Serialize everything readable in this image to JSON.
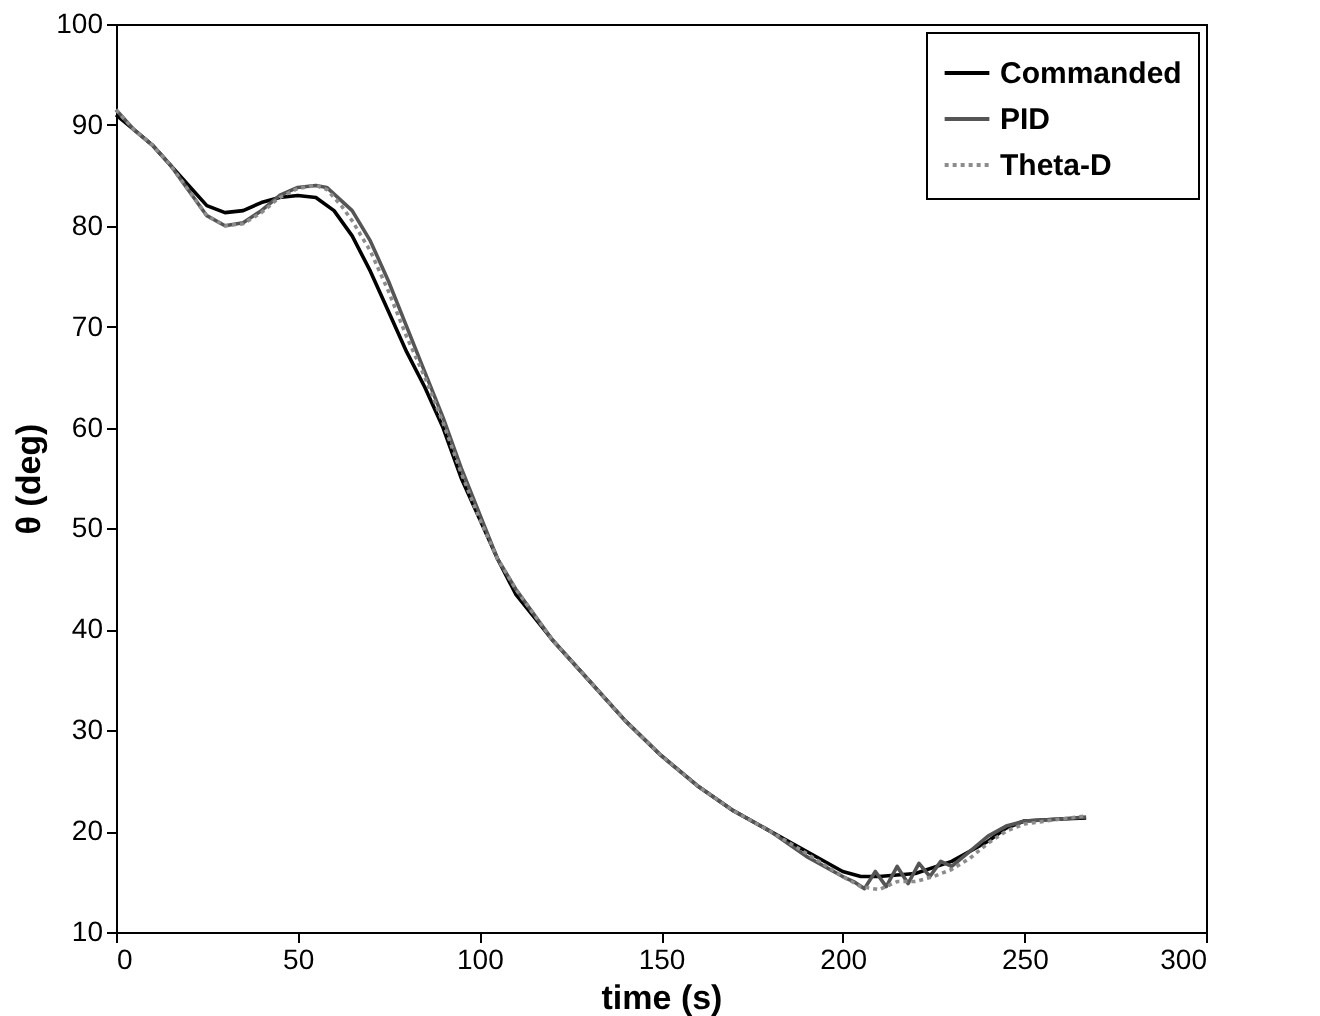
{
  "chart_data": {
    "type": "line",
    "xlabel": "time (s)",
    "ylabel": "θ (deg)",
    "xlim": [
      0,
      300
    ],
    "ylim": [
      10,
      100
    ],
    "xticks": [
      0,
      50,
      100,
      150,
      200,
      250,
      300
    ],
    "yticks": [
      10,
      20,
      30,
      40,
      50,
      60,
      70,
      80,
      90,
      100
    ],
    "grid": false,
    "legend": "top right",
    "marker": "none",
    "series": [
      {
        "name": "Commanded",
        "color": "#000000",
        "line_style": "solid",
        "x": [
          0,
          5,
          10,
          15,
          20,
          25,
          30,
          35,
          40,
          45,
          50,
          55,
          60,
          65,
          70,
          75,
          80,
          85,
          90,
          95,
          100,
          105,
          110,
          120,
          130,
          140,
          150,
          160,
          170,
          180,
          190,
          200,
          205,
          210,
          220,
          230,
          240,
          245,
          250,
          260,
          267
        ],
        "values": [
          91,
          89.5,
          88,
          86,
          84,
          82,
          81.3,
          81.5,
          82.3,
          82.8,
          83,
          82.8,
          81.5,
          79,
          75.5,
          71.5,
          67.5,
          64,
          60,
          55,
          51,
          47,
          43.5,
          39,
          35,
          31,
          27.5,
          24.5,
          22,
          20,
          18,
          16,
          15.5,
          15.5,
          15.8,
          17,
          19,
          20.3,
          21,
          21.2,
          21.3
        ]
      },
      {
        "name": "PID",
        "color": "#555555",
        "line_style": "solid",
        "x": [
          0,
          5,
          10,
          15,
          20,
          25,
          30,
          35,
          40,
          45,
          50,
          55,
          58,
          62,
          65,
          70,
          75,
          80,
          85,
          90,
          95,
          100,
          105,
          110,
          120,
          130,
          140,
          150,
          160,
          170,
          180,
          190,
          200,
          203,
          206,
          209,
          212,
          215,
          218,
          221,
          224,
          227,
          230,
          235,
          240,
          245,
          250,
          260,
          267
        ],
        "values": [
          91.5,
          89.5,
          88,
          86,
          83.5,
          81,
          80,
          80.3,
          81.5,
          83,
          83.8,
          84,
          83.8,
          82.5,
          81.5,
          78.5,
          74.5,
          70,
          65.5,
          61,
          56,
          51.5,
          47,
          44,
          39,
          35,
          31,
          27.5,
          24.5,
          22,
          20,
          17.5,
          15.5,
          15,
          14.3,
          16,
          14.5,
          16.5,
          14.8,
          16.8,
          15.5,
          17,
          16.5,
          18,
          19.5,
          20.5,
          21,
          21.2,
          21.4
        ]
      },
      {
        "name": "Theta-D",
        "color": "#8c8c8c",
        "line_style": "dotted",
        "x": [
          0,
          5,
          10,
          15,
          20,
          25,
          30,
          35,
          40,
          45,
          50,
          55,
          58,
          62,
          65,
          70,
          75,
          80,
          85,
          90,
          95,
          100,
          105,
          110,
          120,
          130,
          140,
          150,
          160,
          170,
          180,
          190,
          200,
          205,
          210,
          215,
          220,
          225,
          230,
          235,
          240,
          245,
          250,
          260,
          267
        ],
        "values": [
          91.5,
          89.5,
          88,
          86,
          83.5,
          81,
          80,
          80.2,
          81.3,
          82.8,
          83.7,
          84,
          83.6,
          82,
          80.5,
          77.5,
          73.5,
          69,
          65,
          60.5,
          55.5,
          51,
          47,
          44,
          39,
          35,
          31,
          27.5,
          24.5,
          22,
          20,
          17.8,
          15.5,
          14.5,
          14.2,
          15,
          15,
          15.5,
          16.2,
          17.3,
          18.8,
          20,
          20.7,
          21.2,
          21.5
        ]
      }
    ]
  }
}
